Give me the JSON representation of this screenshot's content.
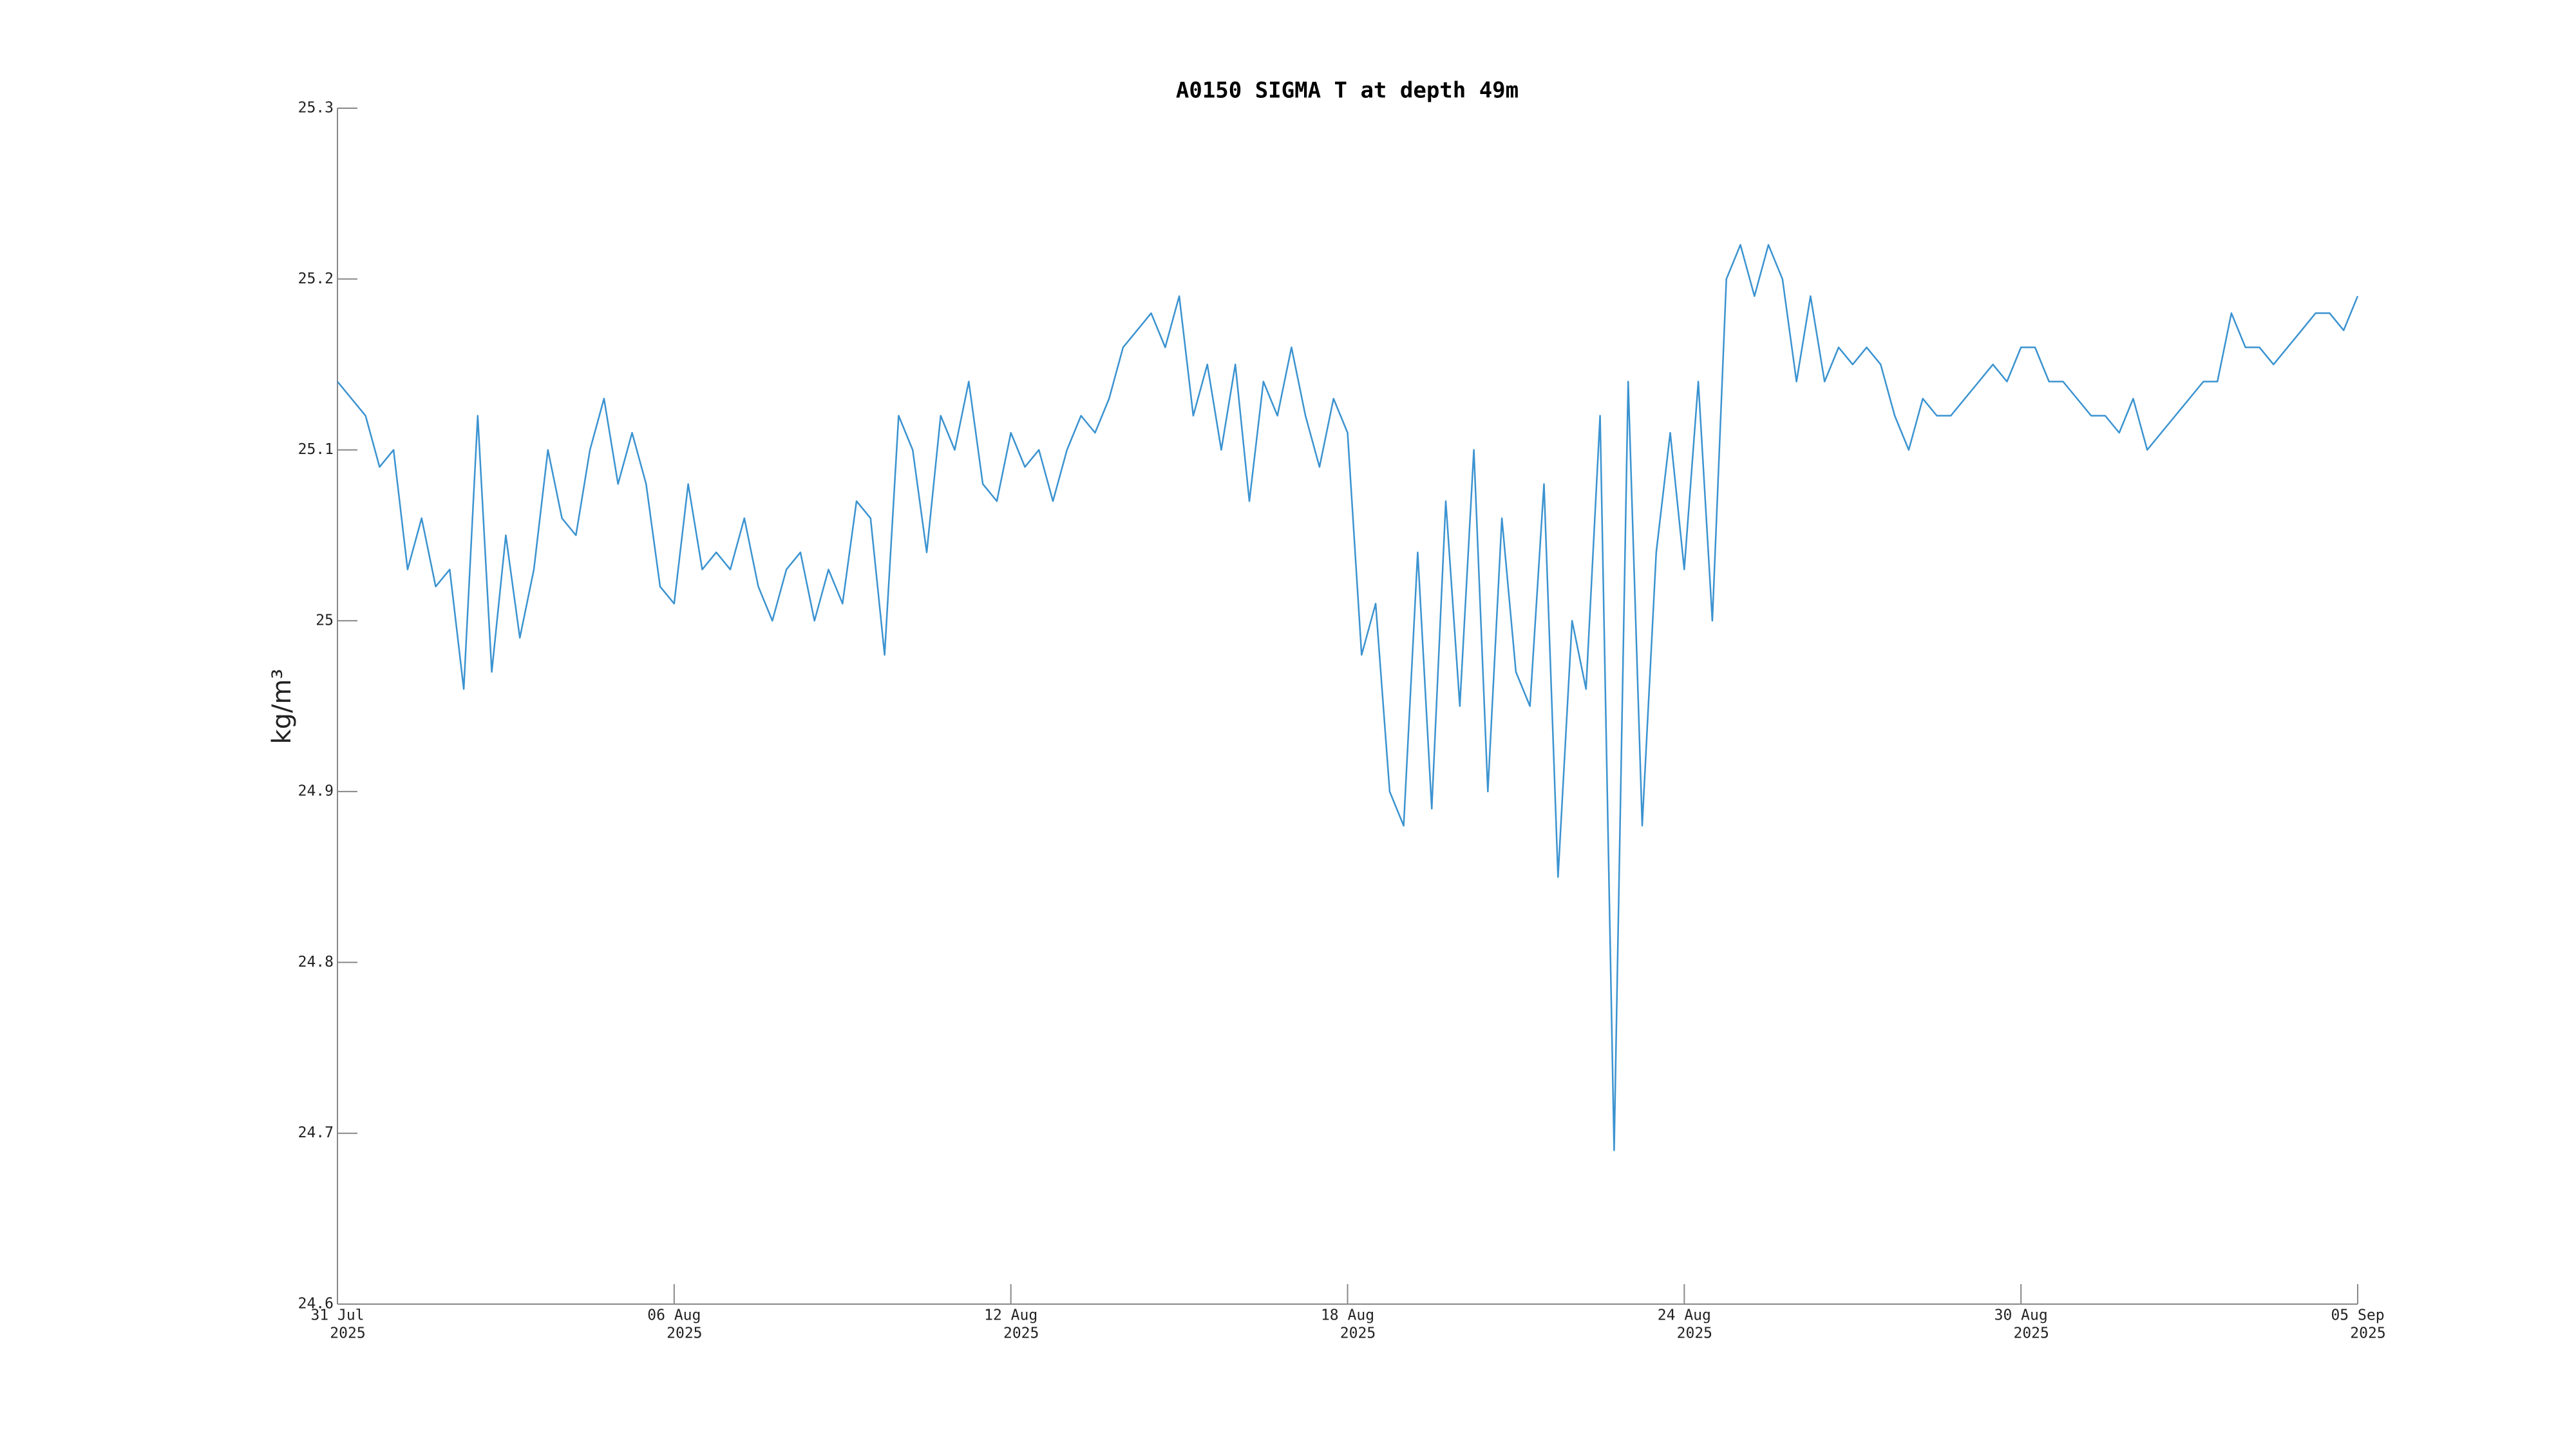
{
  "chart_data": {
    "type": "line",
    "title": "A0150 SIGMA T at depth 49m",
    "ylabel": "kg/m³",
    "color": "#3b93d0",
    "xlim": [
      "2025-07-31 00:00",
      "2025-09-05 00:00"
    ],
    "xticks": [
      {
        "value": "2025-07-31 00:00",
        "label": [
          "31 Jul",
          "2025"
        ]
      },
      {
        "value": "2025-08-06 00:00",
        "label": [
          "06 Aug",
          "2025"
        ]
      },
      {
        "value": "2025-08-12 00:00",
        "label": [
          "12 Aug",
          "2025"
        ]
      },
      {
        "value": "2025-08-18 00:00",
        "label": [
          "18 Aug",
          "2025"
        ]
      },
      {
        "value": "2025-08-24 00:00",
        "label": [
          "24 Aug",
          "2025"
        ]
      },
      {
        "value": "2025-08-30 00:00",
        "label": [
          "30 Aug",
          "2025"
        ]
      },
      {
        "value": "2025-09-05 00:00",
        "label": [
          "05 Sep",
          "2025"
        ]
      }
    ],
    "ylim": [
      24.6,
      25.3
    ],
    "yticks": [
      24.6,
      24.7,
      24.8,
      24.9,
      25,
      25.1,
      25.2,
      25.3
    ],
    "x": [
      "2025-07-31 00:00",
      "2025-07-31 06:00",
      "2025-07-31 12:00",
      "2025-07-31 18:00",
      "2025-08-01 00:00",
      "2025-08-01 06:00",
      "2025-08-01 12:00",
      "2025-08-01 18:00",
      "2025-08-02 00:00",
      "2025-08-02 06:00",
      "2025-08-02 12:00",
      "2025-08-02 18:00",
      "2025-08-03 00:00",
      "2025-08-03 06:00",
      "2025-08-03 12:00",
      "2025-08-03 18:00",
      "2025-08-04 00:00",
      "2025-08-04 06:00",
      "2025-08-04 12:00",
      "2025-08-04 18:00",
      "2025-08-05 00:00",
      "2025-08-05 06:00",
      "2025-08-05 12:00",
      "2025-08-05 18:00",
      "2025-08-06 00:00",
      "2025-08-06 06:00",
      "2025-08-06 12:00",
      "2025-08-06 18:00",
      "2025-08-07 00:00",
      "2025-08-07 06:00",
      "2025-08-07 12:00",
      "2025-08-07 18:00",
      "2025-08-08 00:00",
      "2025-08-08 06:00",
      "2025-08-08 12:00",
      "2025-08-08 18:00",
      "2025-08-09 00:00",
      "2025-08-09 06:00",
      "2025-08-09 12:00",
      "2025-08-09 18:00",
      "2025-08-10 00:00",
      "2025-08-10 06:00",
      "2025-08-10 12:00",
      "2025-08-10 18:00",
      "2025-08-11 00:00",
      "2025-08-11 06:00",
      "2025-08-11 12:00",
      "2025-08-11 18:00",
      "2025-08-12 00:00",
      "2025-08-12 06:00",
      "2025-08-12 12:00",
      "2025-08-12 18:00",
      "2025-08-13 00:00",
      "2025-08-13 06:00",
      "2025-08-13 12:00",
      "2025-08-13 18:00",
      "2025-08-14 00:00",
      "2025-08-14 06:00",
      "2025-08-14 12:00",
      "2025-08-14 18:00",
      "2025-08-15 00:00",
      "2025-08-15 06:00",
      "2025-08-15 12:00",
      "2025-08-15 18:00",
      "2025-08-16 00:00",
      "2025-08-16 06:00",
      "2025-08-16 12:00",
      "2025-08-16 18:00",
      "2025-08-17 00:00",
      "2025-08-17 06:00",
      "2025-08-17 12:00",
      "2025-08-17 18:00",
      "2025-08-18 00:00",
      "2025-08-18 06:00",
      "2025-08-18 12:00",
      "2025-08-18 18:00",
      "2025-08-19 00:00",
      "2025-08-19 06:00",
      "2025-08-19 12:00",
      "2025-08-19 18:00",
      "2025-08-20 00:00",
      "2025-08-20 06:00",
      "2025-08-20 12:00",
      "2025-08-20 18:00",
      "2025-08-21 00:00",
      "2025-08-21 06:00",
      "2025-08-21 12:00",
      "2025-08-21 18:00",
      "2025-08-22 00:00",
      "2025-08-22 06:00",
      "2025-08-22 12:00",
      "2025-08-22 18:00",
      "2025-08-23 00:00",
      "2025-08-23 06:00",
      "2025-08-23 12:00",
      "2025-08-23 18:00",
      "2025-08-24 00:00",
      "2025-08-24 06:00",
      "2025-08-24 12:00",
      "2025-08-24 18:00",
      "2025-08-25 00:00",
      "2025-08-25 06:00",
      "2025-08-25 12:00",
      "2025-08-25 18:00",
      "2025-08-26 00:00",
      "2025-08-26 06:00",
      "2025-08-26 12:00",
      "2025-08-26 18:00",
      "2025-08-27 00:00",
      "2025-08-27 06:00",
      "2025-08-27 12:00",
      "2025-08-27 18:00",
      "2025-08-28 00:00",
      "2025-08-28 06:00",
      "2025-08-28 12:00",
      "2025-08-28 18:00",
      "2025-08-29 00:00",
      "2025-08-29 06:00",
      "2025-08-29 12:00",
      "2025-08-29 18:00",
      "2025-08-30 00:00",
      "2025-08-30 06:00",
      "2025-08-30 12:00",
      "2025-08-30 18:00",
      "2025-08-31 00:00",
      "2025-08-31 06:00",
      "2025-08-31 12:00",
      "2025-08-31 18:00",
      "2025-09-01 00:00",
      "2025-09-01 06:00",
      "2025-09-01 12:00",
      "2025-09-01 18:00",
      "2025-09-02 00:00",
      "2025-09-02 06:00",
      "2025-09-02 12:00",
      "2025-09-02 18:00",
      "2025-09-03 00:00",
      "2025-09-03 06:00",
      "2025-09-03 12:00",
      "2025-09-03 18:00",
      "2025-09-04 00:00",
      "2025-09-04 06:00",
      "2025-09-04 12:00",
      "2025-09-04 18:00",
      "2025-09-05 00:00"
    ],
    "values": [
      25.14,
      25.13,
      25.12,
      25.09,
      25.1,
      25.03,
      25.06,
      25.02,
      25.03,
      24.96,
      25.12,
      24.97,
      25.05,
      24.99,
      25.03,
      25.1,
      25.06,
      25.05,
      25.1,
      25.13,
      25.08,
      25.11,
      25.08,
      25.02,
      25.01,
      25.08,
      25.03,
      25.04,
      25.03,
      25.06,
      25.02,
      25.0,
      25.03,
      25.04,
      25.0,
      25.03,
      25.01,
      25.07,
      25.06,
      24.98,
      25.12,
      25.1,
      25.04,
      25.12,
      25.1,
      25.14,
      25.08,
      25.07,
      25.11,
      25.09,
      25.1,
      25.07,
      25.1,
      25.12,
      25.11,
      25.13,
      25.16,
      25.17,
      25.18,
      25.16,
      25.19,
      25.12,
      25.15,
      25.1,
      25.15,
      25.07,
      25.14,
      25.12,
      25.16,
      25.12,
      25.09,
      25.13,
      25.11,
      24.98,
      25.01,
      24.9,
      24.88,
      25.04,
      24.89,
      25.07,
      24.95,
      25.1,
      24.9,
      25.06,
      24.97,
      24.95,
      25.08,
      24.85,
      25.0,
      24.96,
      25.12,
      24.69,
      25.14,
      24.88,
      25.04,
      25.11,
      25.03,
      25.14,
      25.0,
      25.2,
      25.22,
      25.19,
      25.22,
      25.2,
      25.14,
      25.19,
      25.14,
      25.16,
      25.15,
      25.16,
      25.15,
      25.12,
      25.1,
      25.13,
      25.12,
      25.12,
      25.13,
      25.14,
      25.15,
      25.14,
      25.16,
      25.16,
      25.14,
      25.14,
      25.13,
      25.12,
      25.12,
      25.11,
      25.13,
      25.1,
      25.11,
      25.12,
      25.13,
      25.14,
      25.14,
      25.18,
      25.16,
      25.16,
      25.15,
      25.16,
      25.17,
      25.18,
      25.18,
      25.17,
      25.19
    ]
  }
}
